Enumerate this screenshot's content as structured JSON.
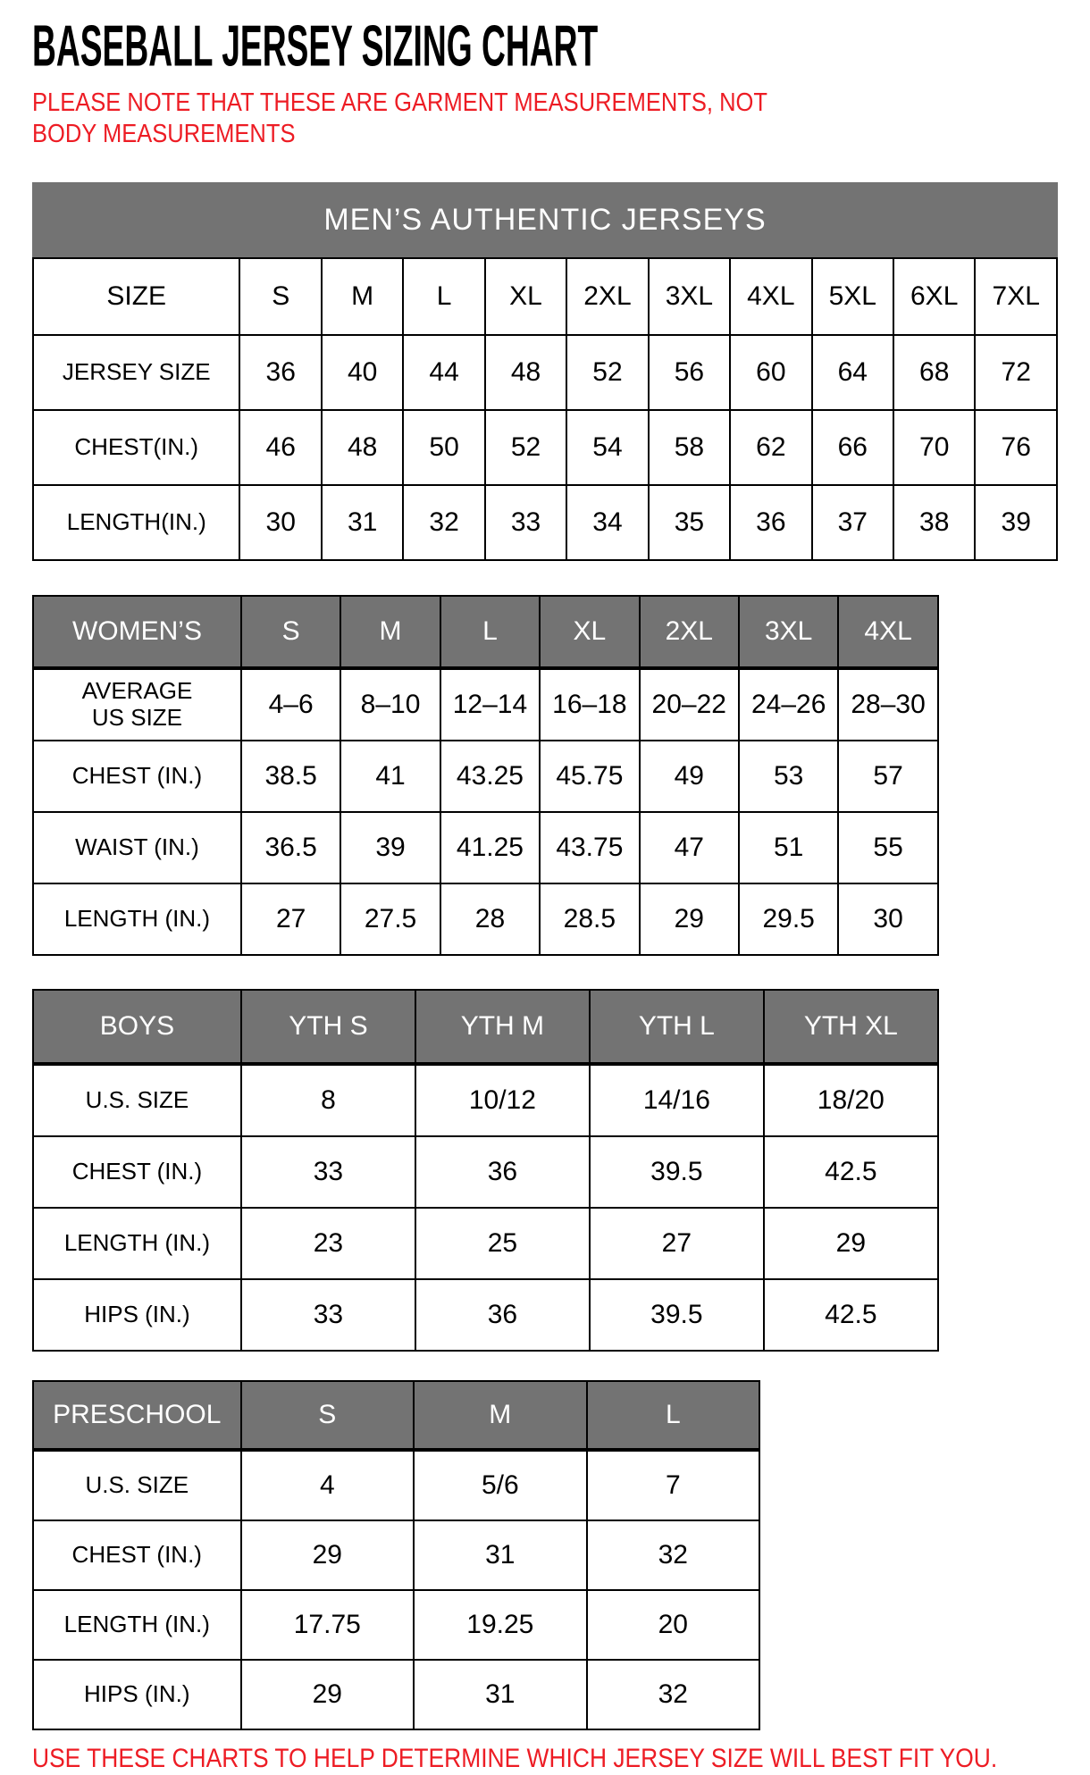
{
  "title": "BASEBALL JERSEY SIZING CHART",
  "note": "PLEASE NOTE THAT THESE ARE GARMENT MEASUREMENTS, NOT BODY MEASUREMENTS",
  "footer": "USE THESE CHARTS TO HELP DETERMINE WHICH JERSEY SIZE WILL BEST FIT YOU.",
  "colors": {
    "header_gray": "#737373",
    "accent_red": "#ED1C24",
    "text_black": "#000000",
    "background": "#FFFFFF"
  },
  "tables": [
    {
      "id": "mens",
      "banner": "MEN’S AUTHENTIC JERSEYS",
      "header_style": "plain",
      "header_row": [
        "SIZE",
        "S",
        "M",
        "L",
        "XL",
        "2XL",
        "3XL",
        "4XL",
        "5XL",
        "6XL",
        "7XL"
      ],
      "rows": [
        [
          "JERSEY SIZE",
          "36",
          "40",
          "44",
          "48",
          "52",
          "56",
          "60",
          "64",
          "68",
          "72"
        ],
        [
          "CHEST(IN.)",
          "46",
          "48",
          "50",
          "52",
          "54",
          "58",
          "62",
          "66",
          "70",
          "76"
        ],
        [
          "LENGTH(IN.)",
          "30",
          "31",
          "32",
          "33",
          "34",
          "35",
          "36",
          "37",
          "38",
          "39"
        ]
      ]
    },
    {
      "id": "womens",
      "header_style": "gray",
      "header_row": [
        "WOMEN’S",
        "S",
        "M",
        "L",
        "XL",
        "2XL",
        "3XL",
        "4XL"
      ],
      "rows": [
        [
          "AVERAGE\nUS SIZE",
          "4–6",
          "8–10",
          "12–14",
          "16–18",
          "20–22",
          "24–26",
          "28–30"
        ],
        [
          "CHEST (IN.)",
          "38.5",
          "41",
          "43.25",
          "45.75",
          "49",
          "53",
          "57"
        ],
        [
          "WAIST (IN.)",
          "36.5",
          "39",
          "41.25",
          "43.75",
          "47",
          "51",
          "55"
        ],
        [
          "LENGTH (IN.)",
          "27",
          "27.5",
          "28",
          "28.5",
          "29",
          "29.5",
          "30"
        ]
      ]
    },
    {
      "id": "boys",
      "header_style": "gray",
      "header_row": [
        "BOYS",
        "YTH S",
        "YTH M",
        "YTH L",
        "YTH XL"
      ],
      "rows": [
        [
          "U.S. SIZE",
          "8",
          "10/12",
          "14/16",
          "18/20"
        ],
        [
          "CHEST (IN.)",
          "33",
          "36",
          "39.5",
          "42.5"
        ],
        [
          "LENGTH (IN.)",
          "23",
          "25",
          "27",
          "29"
        ],
        [
          "HIPS (IN.)",
          "33",
          "36",
          "39.5",
          "42.5"
        ]
      ]
    },
    {
      "id": "preschool",
      "header_style": "gray",
      "header_row": [
        "PRESCHOOL",
        "S",
        "M",
        "L"
      ],
      "rows": [
        [
          "U.S. SIZE",
          "4",
          "5/6",
          "7"
        ],
        [
          "CHEST (IN.)",
          "29",
          "31",
          "32"
        ],
        [
          "LENGTH (IN.)",
          "17.75",
          "19.25",
          "20"
        ],
        [
          "HIPS (IN.)",
          "29",
          "31",
          "32"
        ]
      ]
    }
  ]
}
